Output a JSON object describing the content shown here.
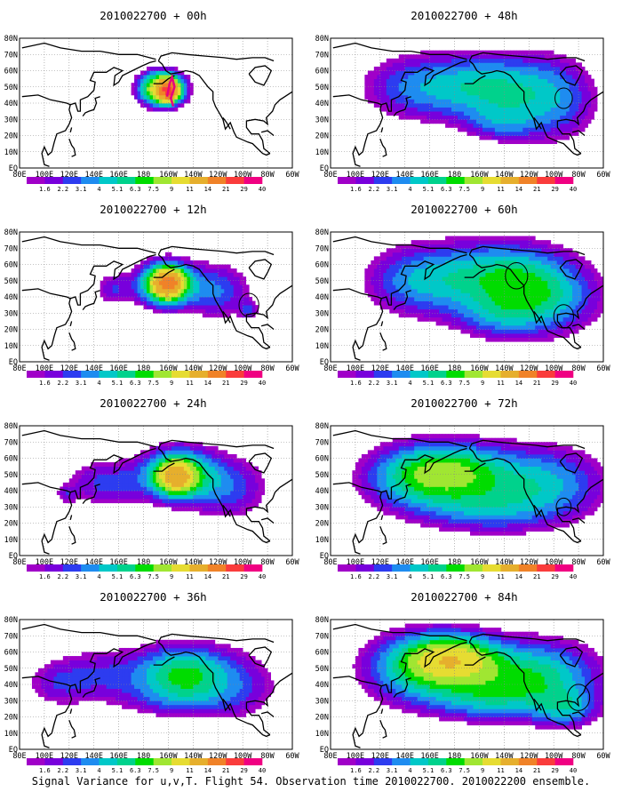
{
  "panels": [
    {
      "title": "2010022700 + 00h",
      "hours": 0
    },
    {
      "title": "2010022700 + 48h",
      "hours": 48
    },
    {
      "title": "2010022700 + 12h",
      "hours": 12
    },
    {
      "title": "2010022700 + 60h",
      "hours": 60
    },
    {
      "title": "2010022700 + 24h",
      "hours": 24
    },
    {
      "title": "2010022700 + 72h",
      "hours": 72
    },
    {
      "title": "2010022700 + 36h",
      "hours": 36
    },
    {
      "title": "2010022700 + 84h",
      "hours": 84
    }
  ],
  "map": {
    "lat_labels": [
      "80N",
      "70N",
      "60N",
      "50N",
      "40N",
      "30N",
      "20N",
      "10N",
      "EQ"
    ],
    "lon_labels": [
      "80E",
      "100E",
      "120E",
      "140E",
      "160E",
      "180",
      "160W",
      "140W",
      "120W",
      "100W",
      "80W",
      "60W"
    ]
  },
  "colorbar": {
    "labels": [
      "1.6",
      "2.2",
      "3.1",
      "4",
      "5.1",
      "6.3",
      "7.5",
      "9",
      "11",
      "14",
      "21",
      "29",
      "40"
    ],
    "colors": [
      "#a000c8",
      "#7800dc",
      "#2d3cf0",
      "#1e8cf0",
      "#00c8c8",
      "#00d28c",
      "#00dc00",
      "#a0e632",
      "#e6dc32",
      "#e6af2d",
      "#f08228",
      "#fa3c3c",
      "#f00082"
    ]
  },
  "footer": "Signal Variance for u,v,T. Flight 54. Observation time 2010022700. 2010022200 ensemble."
}
